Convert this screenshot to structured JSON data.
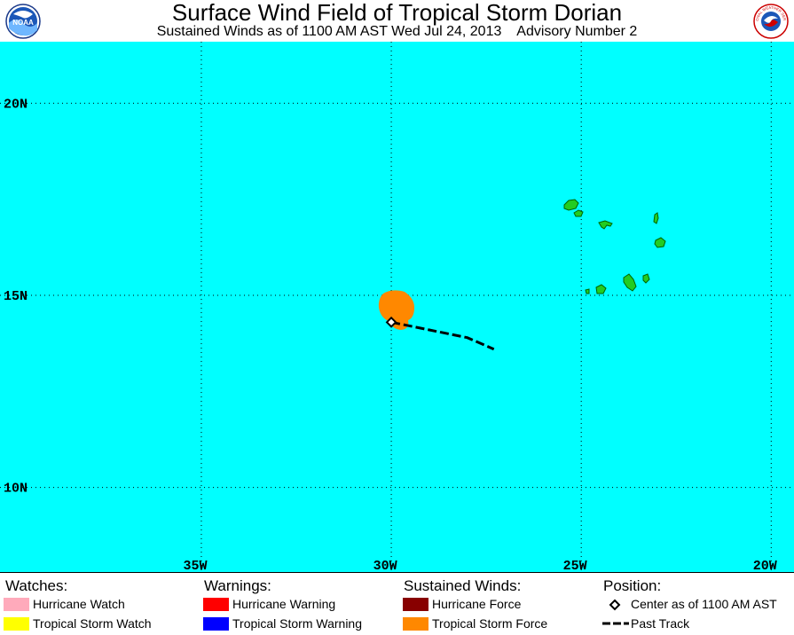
{
  "header": {
    "title": "Surface Wind Field of Tropical Storm Dorian",
    "subtitle": "Sustained Winds as of 1100 AM AST Wed Jul 24, 2013    Advisory Number 2",
    "left_logo": "noaa-logo",
    "right_logo": "nws-logo",
    "noaa_logo_text": "NOAA",
    "nws_logo_text": "NATIONAL WEATHER SERVICE"
  },
  "map": {
    "background_color": "#00ffff",
    "land_color": "#22cc22",
    "lat_labels": [
      "20N",
      "15N",
      "10N"
    ],
    "lon_labels": [
      "35W",
      "30W",
      "25W",
      "20W"
    ],
    "lat_lines": [
      20,
      15,
      10
    ],
    "lon_lines": [
      35,
      30,
      25,
      20
    ],
    "lon_range": [
      -40.3,
      -19.4
    ],
    "lat_range": [
      7.8,
      21.6
    ],
    "wind_field": {
      "category": "Tropical Storm Force",
      "color": "#ff8800"
    },
    "storm_center": {
      "lat": 14.3,
      "lon": -30.0
    },
    "past_track": [
      {
        "lat": 14.3,
        "lon": -30.0
      },
      {
        "lat": 14.1,
        "lon": -29.0
      },
      {
        "lat": 13.9,
        "lon": -28.0
      },
      {
        "lat": 13.6,
        "lon": -27.3
      }
    ]
  },
  "legend": {
    "watches": {
      "heading": "Watches:",
      "items": [
        {
          "label": "Hurricane Watch",
          "color": "#ffaabb"
        },
        {
          "label": "Tropical Storm Watch",
          "color": "#ffff00"
        }
      ]
    },
    "warnings": {
      "heading": "Warnings:",
      "items": [
        {
          "label": "Hurricane Warning",
          "color": "#ff0000"
        },
        {
          "label": "Tropical Storm Warning",
          "color": "#0000ff"
        }
      ]
    },
    "winds": {
      "heading": "Sustained Winds:",
      "items": [
        {
          "label": "Hurricane Force",
          "color": "#880000"
        },
        {
          "label": "Tropical Storm Force",
          "color": "#ff8800"
        }
      ]
    },
    "position": {
      "heading": "Position:",
      "items": [
        {
          "label": "Center as of 1100 AM AST",
          "icon": "diamond-icon"
        },
        {
          "label": "Past Track",
          "icon": "dashed-line-icon"
        }
      ]
    }
  }
}
